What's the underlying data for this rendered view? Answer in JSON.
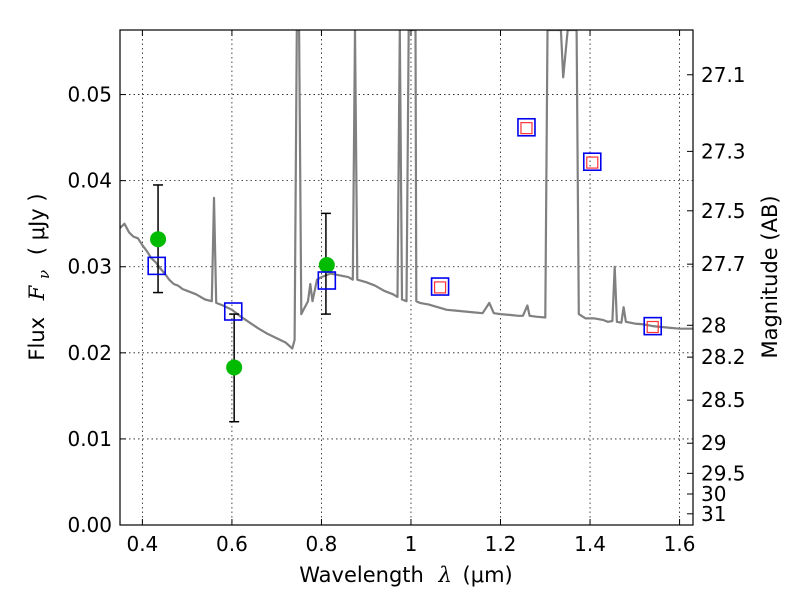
{
  "chart_data": {
    "type": "scatter",
    "xlabel_main": "Wavelength",
    "xlabel_symbol": "λ",
    "xlabel_unit": "(μm)",
    "ylabel_main": "Flux",
    "ylabel_symbol": "F",
    "ylabel_subscript": "ν",
    "ylabel_unit": "( μJy )",
    "ylabel_right": "Magnitude (AB)",
    "xlim": [
      0.35,
      1.63
    ],
    "ylim": [
      0.0,
      0.0575
    ],
    "grid": true,
    "x_ticks": [
      0.4,
      0.6,
      0.8,
      1.0,
      1.2,
      1.4,
      1.6
    ],
    "x_tick_labels": [
      "0.4",
      "0.6",
      "0.8",
      "1",
      "1.2",
      "1.4",
      "1.6"
    ],
    "y_ticks": [
      0.0,
      0.01,
      0.02,
      0.03,
      0.04,
      0.05
    ],
    "y_tick_labels": [
      "0.00",
      "0.01",
      "0.02",
      "0.03",
      "0.04",
      "0.05"
    ],
    "right_ticks": [
      {
        "flux": 0.0523,
        "label": "27.1"
      },
      {
        "flux": 0.0434,
        "label": "27.3"
      },
      {
        "flux": 0.0365,
        "label": "27.5"
      },
      {
        "flux": 0.0303,
        "label": "27.7"
      },
      {
        "flux": 0.0232,
        "label": "28"
      },
      {
        "flux": 0.0195,
        "label": "28.2"
      },
      {
        "flux": 0.0145,
        "label": "28.5"
      },
      {
        "flux": 0.0095,
        "label": "29"
      },
      {
        "flux": 0.006,
        "label": "29.5"
      },
      {
        "flux": 0.0036,
        "label": "30"
      },
      {
        "flux": 0.0013,
        "label": "31"
      }
    ],
    "series": [
      {
        "kind": "line",
        "color": "#808080",
        "points": [
          [
            0.35,
            0.0345
          ],
          [
            0.36,
            0.035
          ],
          [
            0.37,
            0.034
          ],
          [
            0.38,
            0.0335
          ],
          [
            0.39,
            0.0333
          ],
          [
            0.4,
            0.0325
          ],
          [
            0.41,
            0.0318
          ],
          [
            0.42,
            0.031
          ],
          [
            0.43,
            0.0305
          ],
          [
            0.44,
            0.0298
          ],
          [
            0.45,
            0.0292
          ],
          [
            0.46,
            0.0285
          ],
          [
            0.47,
            0.028
          ],
          [
            0.48,
            0.0278
          ],
          [
            0.49,
            0.0274
          ],
          [
            0.5,
            0.0272
          ],
          [
            0.52,
            0.0268
          ],
          [
            0.54,
            0.0262
          ],
          [
            0.555,
            0.026
          ],
          [
            0.56,
            0.038
          ],
          [
            0.565,
            0.0258
          ],
          [
            0.58,
            0.0255
          ],
          [
            0.6,
            0.025
          ],
          [
            0.62,
            0.0242
          ],
          [
            0.64,
            0.0235
          ],
          [
            0.66,
            0.0228
          ],
          [
            0.68,
            0.0222
          ],
          [
            0.7,
            0.0217
          ],
          [
            0.72,
            0.0212
          ],
          [
            0.735,
            0.0205
          ],
          [
            0.74,
            0.0215
          ],
          [
            0.745,
            0.0575
          ],
          [
            0.75,
            0.0575
          ],
          [
            0.755,
            0.0245
          ],
          [
            0.76,
            0.025
          ],
          [
            0.77,
            0.026
          ],
          [
            0.775,
            0.028
          ],
          [
            0.78,
            0.026
          ],
          [
            0.79,
            0.0285
          ],
          [
            0.8,
            0.0288
          ],
          [
            0.82,
            0.0292
          ],
          [
            0.84,
            0.029
          ],
          [
            0.86,
            0.0288
          ],
          [
            0.87,
            0.0285
          ],
          [
            0.875,
            0.0575
          ],
          [
            0.88,
            0.0285
          ],
          [
            0.9,
            0.0282
          ],
          [
            0.92,
            0.0278
          ],
          [
            0.94,
            0.0272
          ],
          [
            0.96,
            0.0268
          ],
          [
            0.97,
            0.0265
          ],
          [
            0.975,
            0.0575
          ],
          [
            0.98,
            0.0262
          ],
          [
            0.99,
            0.026
          ],
          [
            0.995,
            0.0575
          ],
          [
            1.0,
            0.0575
          ],
          [
            1.01,
            0.0575
          ],
          [
            1.012,
            0.026
          ],
          [
            1.02,
            0.0258
          ],
          [
            1.04,
            0.0256
          ],
          [
            1.06,
            0.0253
          ],
          [
            1.08,
            0.025
          ],
          [
            1.1,
            0.0249
          ],
          [
            1.12,
            0.0248
          ],
          [
            1.14,
            0.0247
          ],
          [
            1.16,
            0.0246
          ],
          [
            1.175,
            0.0258
          ],
          [
            1.185,
            0.0246
          ],
          [
            1.2,
            0.0245
          ],
          [
            1.22,
            0.0244
          ],
          [
            1.24,
            0.0243
          ],
          [
            1.25,
            0.0243
          ],
          [
            1.26,
            0.0255
          ],
          [
            1.265,
            0.0243
          ],
          [
            1.28,
            0.0242
          ],
          [
            1.3,
            0.0241
          ],
          [
            1.305,
            0.0575
          ],
          [
            1.32,
            0.0575
          ],
          [
            1.33,
            0.0575
          ],
          [
            1.335,
            0.0575
          ],
          [
            1.34,
            0.052
          ],
          [
            1.35,
            0.0575
          ],
          [
            1.36,
            0.0575
          ],
          [
            1.37,
            0.0575
          ],
          [
            1.375,
            0.0245
          ],
          [
            1.39,
            0.024
          ],
          [
            1.41,
            0.024
          ],
          [
            1.43,
            0.0238
          ],
          [
            1.44,
            0.0236
          ],
          [
            1.45,
            0.0237
          ],
          [
            1.455,
            0.03
          ],
          [
            1.46,
            0.0236
          ],
          [
            1.47,
            0.0235
          ],
          [
            1.475,
            0.0253
          ],
          [
            1.48,
            0.0236
          ],
          [
            1.5,
            0.0234
          ],
          [
            1.52,
            0.0233
          ],
          [
            1.54,
            0.0231
          ],
          [
            1.56,
            0.023
          ],
          [
            1.58,
            0.0229
          ],
          [
            1.6,
            0.0228
          ],
          [
            1.63,
            0.0228
          ]
        ]
      },
      {
        "kind": "errorbar",
        "color": "#000000",
        "bars": [
          {
            "x": 0.435,
            "low": 0.027,
            "high": 0.0395
          },
          {
            "x": 0.605,
            "low": 0.012,
            "high": 0.0245
          },
          {
            "x": 0.81,
            "low": 0.0245,
            "high": 0.0362
          }
        ]
      },
      {
        "kind": "scatter",
        "marker": "circle",
        "color": "#00bb00",
        "points": [
          [
            0.435,
            0.0332
          ],
          [
            0.605,
            0.0183
          ],
          [
            0.812,
            0.0302
          ]
        ]
      },
      {
        "kind": "scatter",
        "marker": "open-square",
        "color": "#0000ee",
        "points": [
          [
            0.432,
            0.0301
          ],
          [
            0.603,
            0.0248
          ],
          [
            0.812,
            0.0284
          ],
          [
            1.065,
            0.0277
          ],
          [
            1.258,
            0.0462
          ],
          [
            1.405,
            0.0422
          ],
          [
            1.54,
            0.0231
          ]
        ]
      },
      {
        "kind": "scatter",
        "marker": "small-open-square",
        "color": "#ff3333",
        "points": [
          [
            1.065,
            0.0276
          ],
          [
            1.258,
            0.0461
          ],
          [
            1.405,
            0.0421
          ],
          [
            1.54,
            0.023
          ]
        ]
      }
    ]
  }
}
